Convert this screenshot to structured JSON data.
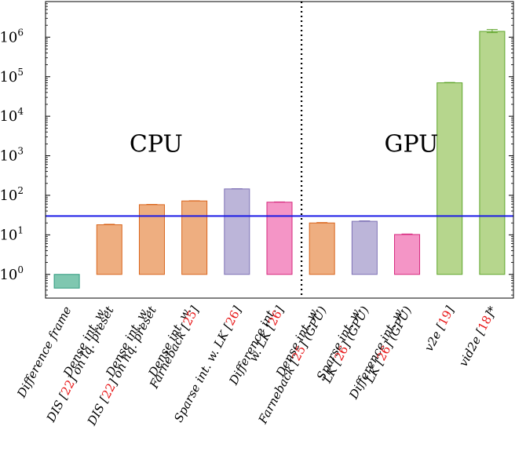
{
  "chart_data": {
    "type": "bar",
    "yscale": "log",
    "ylim_exponents": [
      -0.6,
      6.9
    ],
    "y_ticks": [
      {
        "base": "10",
        "exp": "0"
      },
      {
        "base": "10",
        "exp": "1"
      },
      {
        "base": "10",
        "exp": "2"
      },
      {
        "base": "10",
        "exp": "3"
      },
      {
        "base": "10",
        "exp": "4"
      },
      {
        "base": "10",
        "exp": "5"
      },
      {
        "base": "10",
        "exp": "6"
      }
    ],
    "reference_line_value": 30,
    "reference_line_color": "#1a1ae6",
    "divider_after_index": 6,
    "regions": [
      {
        "label": "CPU",
        "x_at_index": 2.1,
        "y_value": 2000
      },
      {
        "label": "GPU",
        "x_at_index": 8.1,
        "y_value": 2000
      }
    ],
    "categories": [
      {
        "lines": [
          [
            {
              "t": "Difference frame"
            }
          ]
        ]
      },
      {
        "lines": [
          [
            {
              "t": "Dense int. w."
            }
          ],
          [
            {
              "t": "DIS ["
            },
            {
              "t": "22",
              "ref": true
            },
            {
              "t": "] on lq. preset"
            }
          ]
        ]
      },
      {
        "lines": [
          [
            {
              "t": "Dense int. w."
            }
          ],
          [
            {
              "t": "DIS ["
            },
            {
              "t": "22",
              "ref": true
            },
            {
              "t": "] on hq. preset"
            }
          ]
        ]
      },
      {
        "lines": [
          [
            {
              "t": "Dense int. w."
            }
          ],
          [
            {
              "t": "Farneback ["
            },
            {
              "t": "25",
              "ref": true
            },
            {
              "t": "]"
            }
          ]
        ]
      },
      {
        "lines": [
          [
            {
              "t": "Sparse int. w. LK ["
            },
            {
              "t": "26",
              "ref": true
            },
            {
              "t": "]"
            }
          ]
        ]
      },
      {
        "lines": [
          [
            {
              "t": "Difference int."
            }
          ],
          [
            {
              "t": "w. LK ["
            },
            {
              "t": "26",
              "ref": true
            },
            {
              "t": "]"
            }
          ]
        ]
      },
      {
        "lines": [
          [
            {
              "t": "Dense int. w."
            }
          ],
          [
            {
              "t": "Farneback ["
            },
            {
              "t": "25",
              "ref": true
            },
            {
              "t": "] (GPU)"
            }
          ]
        ]
      },
      {
        "lines": [
          [
            {
              "t": "Sparse int. w."
            }
          ],
          [
            {
              "t": "LK ["
            },
            {
              "t": "26",
              "ref": true
            },
            {
              "t": "] (GPU)"
            }
          ]
        ]
      },
      {
        "lines": [
          [
            {
              "t": "Difference int. w."
            }
          ],
          [
            {
              "t": "LK ["
            },
            {
              "t": "26",
              "ref": true
            },
            {
              "t": "] (GPU)"
            }
          ]
        ]
      },
      {
        "lines": [
          [
            {
              "t": "v2e ["
            },
            {
              "t": "19",
              "ref": true
            },
            {
              "t": "]"
            }
          ]
        ]
      },
      {
        "lines": [
          [
            {
              "t": "vid2e ["
            },
            {
              "t": "18",
              "ref": true
            },
            {
              "t": "]*"
            }
          ]
        ]
      }
    ],
    "bars": [
      {
        "bottom": 0.45,
        "top": 1.0,
        "error": null,
        "fill": "#7fc7b0",
        "stroke": "#2e9a7e"
      },
      {
        "bottom": 1.0,
        "top": 18,
        "error": 18.5,
        "fill": "#eeae80",
        "stroke": "#d9651c"
      },
      {
        "bottom": 1.0,
        "top": 58,
        "error": 59,
        "fill": "#eeae80",
        "stroke": "#d9651c"
      },
      {
        "bottom": 1.0,
        "top": 72,
        "error": 73,
        "fill": "#eeae80",
        "stroke": "#d9651c"
      },
      {
        "bottom": 1.0,
        "top": 145,
        "error": 147,
        "fill": "#bcb5d9",
        "stroke": "#7d70b5"
      },
      {
        "bottom": 1.0,
        "top": 67,
        "error": 68,
        "fill": "#f495c6",
        "stroke": "#d6287e"
      },
      {
        "bottom": 1.0,
        "top": 20,
        "error": 20.5,
        "fill": "#eeae80",
        "stroke": "#d9651c"
      },
      {
        "bottom": 1.0,
        "top": 22,
        "error": 22.6,
        "fill": "#bcb5d9",
        "stroke": "#7d70b5"
      },
      {
        "bottom": 1.0,
        "top": 10.2,
        "error": 10.5,
        "fill": "#f495c6",
        "stroke": "#d6287e"
      },
      {
        "bottom": 1.0,
        "top": 70000,
        "error": 71500,
        "fill": "#b6d68d",
        "stroke": "#5fa52b"
      },
      {
        "bottom": 1.0,
        "top": 1400000,
        "error": 1560000,
        "error_low": 1300000,
        "fill": "#b6d68d",
        "stroke": "#5fa52b"
      }
    ]
  }
}
